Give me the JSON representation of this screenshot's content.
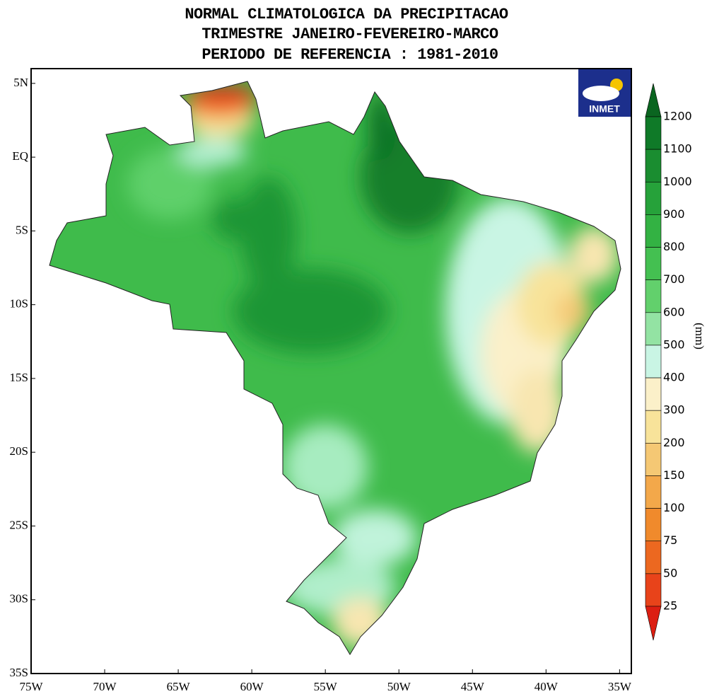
{
  "title": [
    "NORMAL CLIMATOLOGICA DA PRECIPITACAO",
    "TRIMESTRE JANEIRO-FEVEREIRO-MARCO",
    "PERIODO DE REFERENCIA : 1981-2010"
  ],
  "logo": "INMET",
  "map": {
    "xlim": [
      -75,
      -34.2
    ],
    "ylim": [
      -35,
      6
    ],
    "xticks": [
      {
        "value": -75,
        "label": "75W"
      },
      {
        "value": -70,
        "label": "70W"
      },
      {
        "value": -65,
        "label": "65W"
      },
      {
        "value": -60,
        "label": "60W"
      },
      {
        "value": -55,
        "label": "55W"
      },
      {
        "value": -50,
        "label": "50W"
      },
      {
        "value": -45,
        "label": "45W"
      },
      {
        "value": -40,
        "label": "40W"
      },
      {
        "value": -35,
        "label": "35W"
      }
    ],
    "yticks": [
      {
        "value": 5,
        "label": "5N"
      },
      {
        "value": 0,
        "label": "EQ"
      },
      {
        "value": -5,
        "label": "5S"
      },
      {
        "value": -10,
        "label": "10S"
      },
      {
        "value": -15,
        "label": "15S"
      },
      {
        "value": -20,
        "label": "20S"
      },
      {
        "value": -25,
        "label": "25S"
      },
      {
        "value": -30,
        "label": "30S"
      },
      {
        "value": -35,
        "label": "35S"
      }
    ]
  },
  "colorbar": {
    "unit": "(mm)",
    "levels": [
      1200,
      1100,
      1000,
      900,
      800,
      700,
      600,
      500,
      400,
      300,
      200,
      150,
      100,
      75,
      50,
      25
    ],
    "colors": [
      "#0a6520",
      "#0f7a28",
      "#1a8d30",
      "#26a23a",
      "#33b243",
      "#44c051",
      "#62d06c",
      "#93e3a3",
      "#c9f5e4",
      "#fbf0c9",
      "#f8e39a",
      "#f5c874",
      "#f3a84a",
      "#f08a2c",
      "#ec6820",
      "#e8431a",
      "#dc1e12"
    ]
  }
}
